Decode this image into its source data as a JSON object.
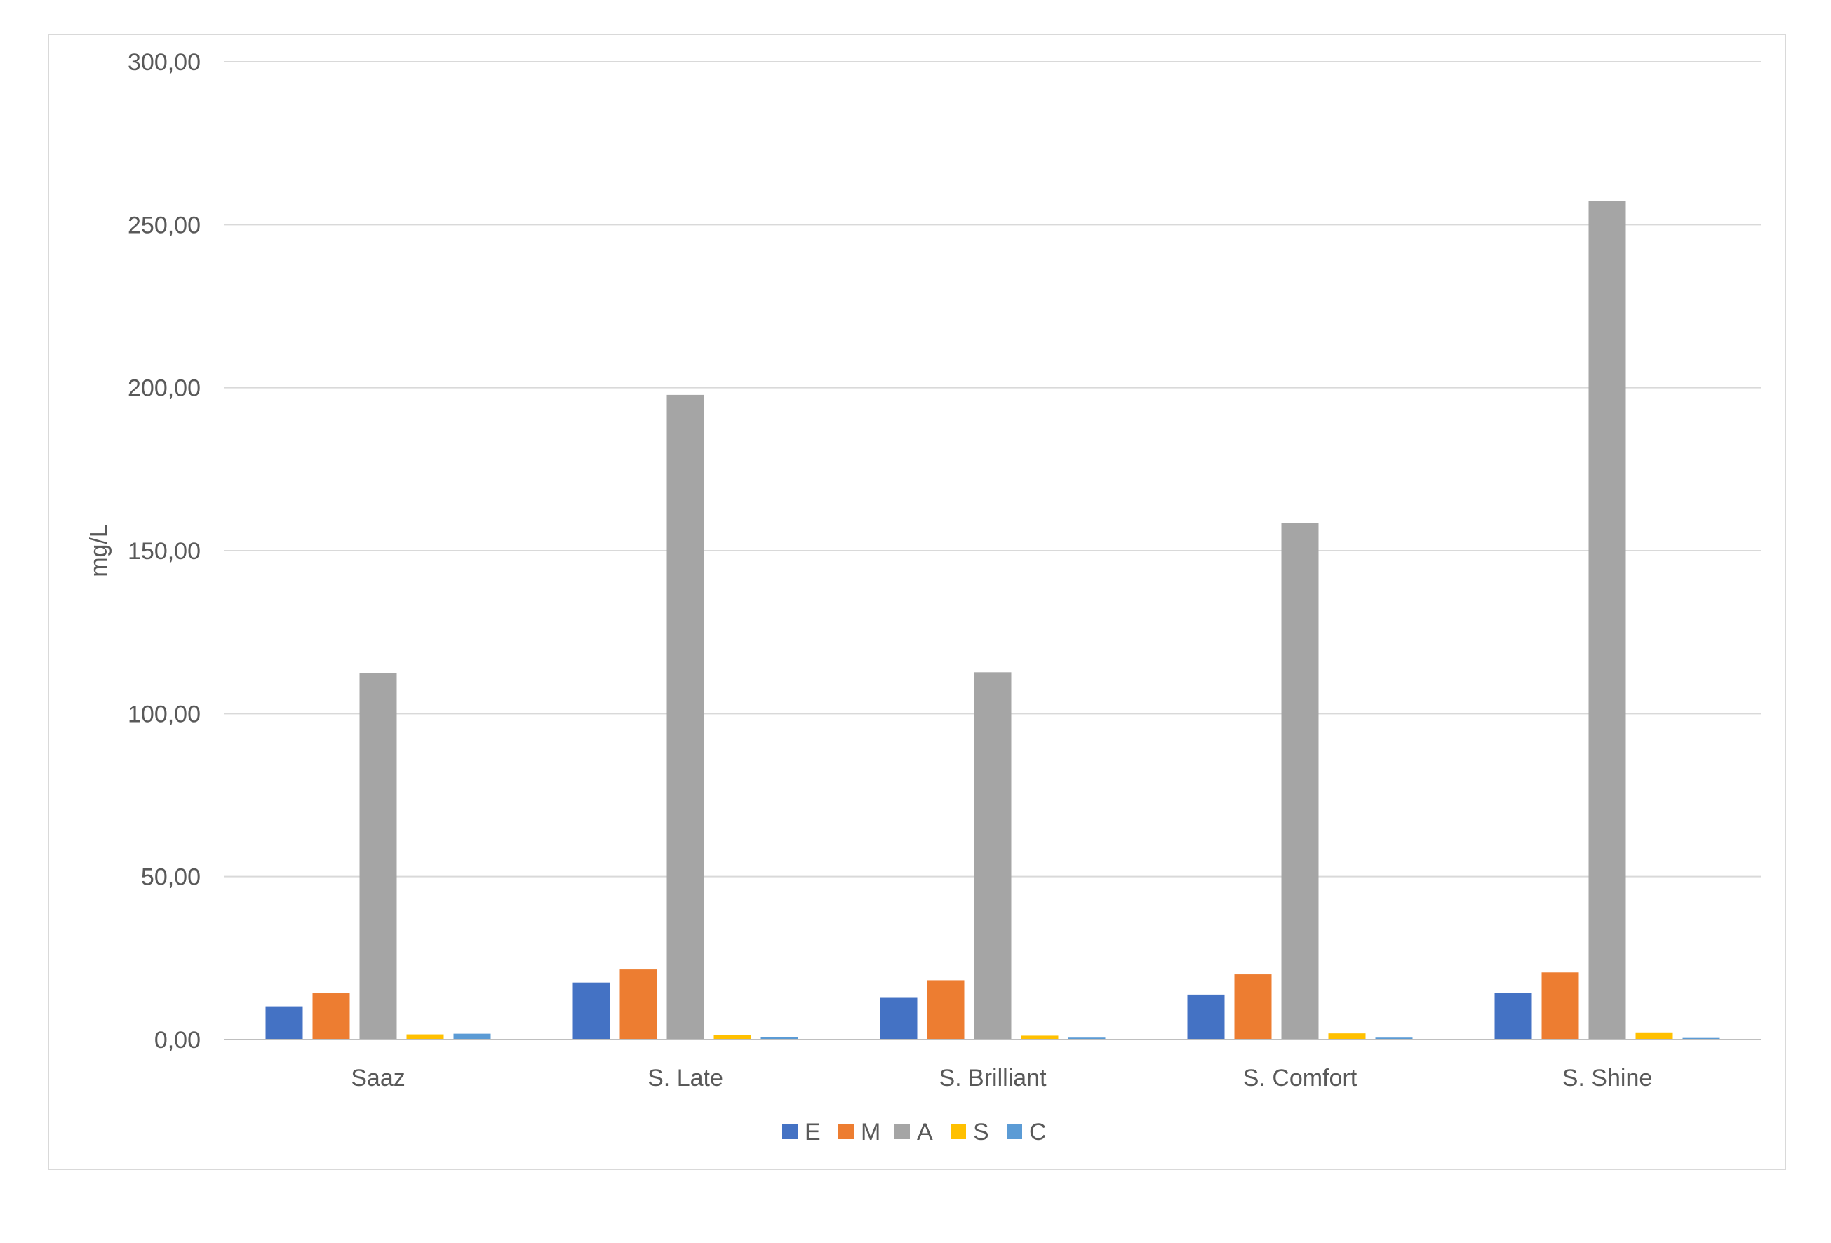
{
  "chart_data": {
    "type": "bar",
    "title": "",
    "xlabel": "",
    "ylabel": "mg/L",
    "ylim": [
      0,
      300
    ],
    "yticks": [
      0,
      50,
      100,
      150,
      200,
      250,
      300
    ],
    "ytick_labels": [
      "0,00",
      "50,00",
      "100,00",
      "150,00",
      "200,00",
      "250,00",
      "300,00"
    ],
    "categories": [
      "Saaz",
      "S. Late",
      "S. Brilliant",
      "S. Comfort",
      "S. Shine"
    ],
    "series": [
      {
        "name": "E",
        "color": "#4472C4",
        "values": [
          10.2,
          17.5,
          12.8,
          13.8,
          14.3
        ]
      },
      {
        "name": "M",
        "color": "#ED7D31",
        "values": [
          14.2,
          21.5,
          18.2,
          20.0,
          20.6
        ]
      },
      {
        "name": "A",
        "color": "#A5A5A5",
        "values": [
          112.5,
          197.8,
          112.7,
          158.6,
          257.2
        ]
      },
      {
        "name": "S",
        "color": "#FFC000",
        "values": [
          1.6,
          1.3,
          1.2,
          1.9,
          2.2
        ]
      },
      {
        "name": "C",
        "color": "#5B9BD5",
        "values": [
          1.8,
          0.8,
          0.6,
          0.6,
          0.5
        ]
      }
    ],
    "grid": true,
    "legend_position": "bottom"
  }
}
